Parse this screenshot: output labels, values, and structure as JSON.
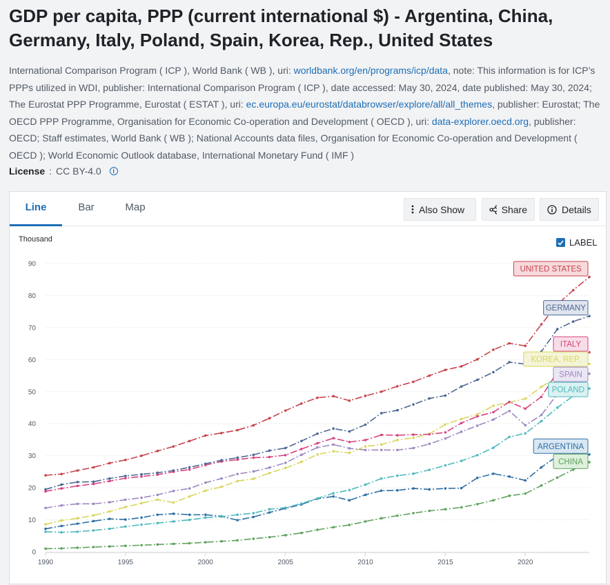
{
  "title": "GDP per capita, PPP (current international $) - Argentina, China, Germany, Italy, Poland, Spain, Korea, Rep., United States",
  "meta": {
    "part1": "International Comparison Program ( ICP ), World Bank ( WB ), uri: ",
    "link1": "worldbank.org/en/programs/icp/data",
    "part2": ", note: This information is for ICP’s PPPs utilized in WDI, publisher: International Comparison Program ( ICP ), date accessed: May 30, 2024, date published: May 30, 2024; The Eurostat PPP Programme, Eurostat ( ESTAT ), uri: ",
    "link2": "ec.europa.eu/eurostat/databrowser/explore/all/all_themes",
    "part3": ", publisher: Eurostat; The OECD PPP Programme, Organisation for Economic Co-operation and Development ( OECD ), uri: ",
    "link3": "data-explorer.oecd.org",
    "part4": ", publisher: OECD; Staff estimates, World Bank ( WB ); National Accounts data files, Organisation for Economic Co-operation and Development ( OECD ); World Economic Outlook database, International Monetary Fund ( IMF )"
  },
  "license": {
    "label": "License",
    "sep": " : ",
    "value": "CC BY-4.0",
    "info_icon": "info-icon"
  },
  "tabs": [
    {
      "label": "Line",
      "active": true
    },
    {
      "label": "Bar",
      "active": false
    },
    {
      "label": "Map",
      "active": false
    }
  ],
  "toolbar": {
    "also_show": "Also Show",
    "share": "Share",
    "details": "Details"
  },
  "label_toggle": {
    "label": "LABEL",
    "checked": true
  },
  "colors": {
    "accent": "#1d6eb5"
  },
  "chart_data": {
    "type": "line",
    "ylabel": "Thousand",
    "xlabel": "",
    "ylim": [
      0,
      90
    ],
    "xlim": [
      1990,
      2024
    ],
    "yticks": [
      0,
      10,
      20,
      30,
      40,
      50,
      60,
      70,
      80,
      90
    ],
    "xticks": [
      1990,
      1995,
      2000,
      2005,
      2010,
      2015,
      2020
    ],
    "grid": true,
    "x": [
      1990,
      1991,
      1992,
      1993,
      1994,
      1995,
      1996,
      1997,
      1998,
      1999,
      2000,
      2001,
      2002,
      2003,
      2004,
      2005,
      2006,
      2007,
      2008,
      2009,
      2010,
      2011,
      2012,
      2013,
      2014,
      2015,
      2016,
      2017,
      2018,
      2019,
      2020,
      2021,
      2022,
      2023,
      2024
    ],
    "series": [
      {
        "name": "UNITED STATES",
        "color": "#c8414b",
        "label_bg": "#f6dadc",
        "values": [
          23.9,
          24.3,
          25.4,
          26.4,
          27.7,
          28.7,
          30.0,
          31.5,
          32.9,
          34.6,
          36.3,
          37.1,
          38.0,
          39.5,
          41.7,
          44.1,
          46.3,
          48.1,
          48.6,
          47.2,
          48.7,
          50.0,
          51.7,
          53.1,
          55.0,
          56.8,
          57.9,
          60.1,
          63.1,
          65.1,
          64.3,
          71.0,
          77.2,
          81.7,
          85.8
        ]
      },
      {
        "name": "GERMANY",
        "color": "#4e6792",
        "label_bg": "#dfe4ee",
        "values": [
          19.5,
          21.0,
          21.8,
          21.9,
          22.9,
          23.7,
          24.2,
          24.7,
          25.4,
          26.4,
          27.5,
          28.6,
          29.4,
          30.3,
          31.6,
          32.4,
          34.6,
          36.9,
          38.5,
          37.6,
          39.7,
          43.3,
          44.2,
          46.0,
          47.9,
          48.8,
          51.6,
          53.7,
          56.1,
          59.2,
          58.6,
          62.5,
          69.5,
          71.9,
          73.6
        ]
      },
      {
        "name": "ITALY",
        "color": "#d9417e",
        "label_bg": "#f7dde8",
        "values": [
          18.9,
          19.8,
          20.6,
          21.2,
          22.1,
          23.0,
          23.5,
          24.1,
          25.0,
          25.7,
          27.1,
          28.2,
          28.8,
          29.4,
          29.6,
          30.2,
          32.1,
          33.9,
          35.5,
          34.3,
          34.9,
          36.5,
          36.4,
          36.6,
          36.7,
          37.3,
          40.2,
          42.3,
          43.6,
          46.8,
          44.7,
          48.4,
          56.1,
          60.1,
          62.3
        ]
      },
      {
        "name": "SPAIN",
        "color": "#9e88c2",
        "label_bg": "#ebe6f3",
        "values": [
          13.7,
          14.5,
          15.0,
          15.0,
          15.5,
          16.3,
          16.9,
          17.8,
          19.0,
          19.8,
          21.6,
          22.9,
          24.3,
          25.1,
          26.3,
          27.8,
          30.3,
          32.6,
          33.5,
          32.3,
          31.8,
          31.8,
          31.8,
          32.4,
          33.7,
          35.4,
          37.5,
          39.4,
          41.3,
          44.0,
          39.5,
          42.7,
          49.2,
          53.4,
          55.6
        ]
      },
      {
        "name": "POLAND",
        "color": "#4cb9bd",
        "label_bg": "#dbf1f2",
        "values": [
          6.3,
          6.1,
          6.3,
          6.7,
          7.2,
          7.9,
          8.5,
          9.0,
          9.5,
          10.0,
          10.7,
          11.0,
          11.6,
          12.1,
          13.3,
          13.8,
          15.1,
          16.7,
          18.3,
          19.3,
          21.0,
          22.9,
          23.8,
          24.4,
          25.6,
          27.0,
          28.4,
          30.2,
          32.5,
          35.9,
          37.0,
          40.8,
          45.0,
          48.7,
          51.0
        ]
      },
      {
        "name": "KOREA, REP.",
        "color": "#d8d65a",
        "label_bg": "#f4f4d8",
        "values": [
          8.6,
          9.8,
          10.5,
          11.4,
          12.6,
          14.0,
          15.2,
          16.3,
          15.4,
          17.3,
          19.1,
          20.3,
          22.1,
          22.8,
          24.6,
          26.2,
          28.1,
          30.4,
          31.4,
          30.9,
          32.9,
          33.5,
          34.9,
          35.6,
          36.8,
          39.8,
          41.5,
          42.9,
          45.6,
          46.7,
          47.8,
          51.5,
          54.6,
          56.8,
          58.7
        ]
      },
      {
        "name": "ARGENTINA",
        "color": "#2c6ea4",
        "label_bg": "#d9e7f3",
        "values": [
          7.2,
          8.1,
          8.8,
          9.6,
          10.3,
          10.1,
          10.7,
          11.6,
          11.9,
          11.6,
          11.6,
          11.1,
          9.9,
          10.9,
          12.3,
          13.6,
          14.8,
          16.6,
          17.3,
          16.1,
          17.8,
          19.1,
          19.2,
          19.8,
          19.5,
          19.8,
          19.9,
          23.1,
          24.4,
          23.5,
          22.3,
          26.4,
          29.9,
          30.6,
          30.4
        ]
      },
      {
        "name": "CHINA",
        "color": "#5ea35d",
        "label_bg": "#dff0df",
        "values": [
          1.0,
          1.1,
          1.3,
          1.5,
          1.7,
          1.9,
          2.1,
          2.3,
          2.5,
          2.7,
          3.0,
          3.3,
          3.6,
          4.1,
          4.6,
          5.2,
          5.9,
          6.9,
          7.7,
          8.4,
          9.5,
          10.5,
          11.3,
          12.1,
          12.8,
          13.3,
          13.9,
          14.9,
          16.1,
          17.5,
          18.2,
          20.7,
          23.2,
          25.7,
          28.0
        ]
      }
    ]
  }
}
